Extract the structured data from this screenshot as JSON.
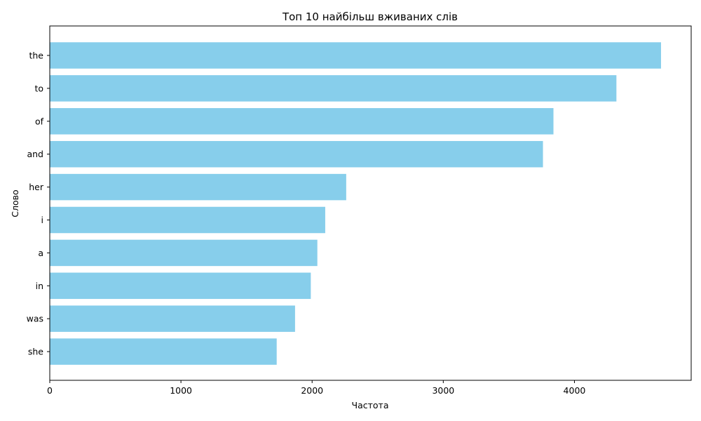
{
  "chart_data": {
    "type": "bar",
    "orientation": "horizontal",
    "title": "Топ 10 найбільш вживаних слів",
    "xlabel": "Частота",
    "ylabel": "Слово",
    "categories": [
      "the",
      "to",
      "of",
      "and",
      "her",
      "i",
      "a",
      "in",
      "was",
      "she"
    ],
    "values": [
      4660,
      4320,
      3840,
      3760,
      2260,
      2100,
      2040,
      1990,
      1870,
      1730
    ],
    "xlim": [
      0,
      4890
    ],
    "x_ticks": [
      0,
      1000,
      2000,
      3000,
      4000
    ],
    "grid": false,
    "bar_color": "#87CEEB"
  }
}
